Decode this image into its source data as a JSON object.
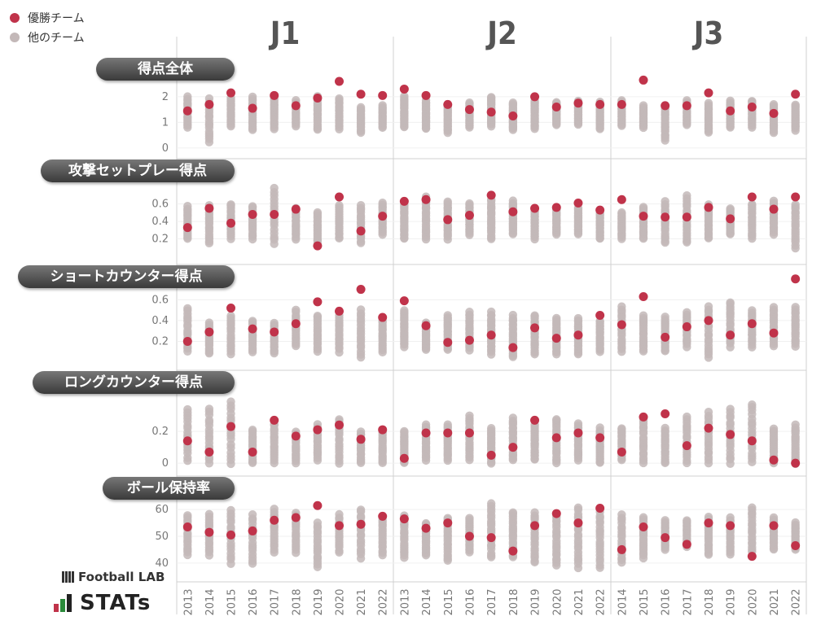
{
  "legend": {
    "winner": {
      "label": "優勝チーム",
      "color": "#c0334a"
    },
    "others": {
      "label": "他のチーム",
      "color": "#c3b8b8"
    }
  },
  "leagues": [
    "J1",
    "J2",
    "J3"
  ],
  "logos": {
    "footballlab": "Football LAB",
    "stats": "STATs"
  },
  "chart_data": {
    "type": "scatter",
    "x_categories": {
      "J1": [
        "2013",
        "2014",
        "2015",
        "2016",
        "2017",
        "2018",
        "2019",
        "2020",
        "2021",
        "2022"
      ],
      "J2": [
        "2013",
        "2014",
        "2015",
        "2016",
        "2017",
        "2018",
        "2019",
        "2020",
        "2021",
        "2022"
      ],
      "J3": [
        "2014",
        "2015",
        "2016",
        "2017",
        "2018",
        "2019",
        "2020",
        "2021",
        "2022"
      ]
    },
    "panels": [
      {
        "label": "得点全体",
        "ylim": [
          -0.1,
          2.6
        ],
        "ticks": [
          0,
          1,
          2
        ],
        "winner": {
          "J1": [
            1.45,
            1.7,
            2.15,
            1.55,
            2.05,
            1.65,
            1.95,
            2.6,
            2.1,
            2.05
          ],
          "J2": [
            2.3,
            2.05,
            1.7,
            1.5,
            1.4,
            1.25,
            2.0,
            1.6,
            1.75,
            1.7
          ],
          "J3": [
            1.7,
            2.65,
            1.65,
            1.65,
            2.15,
            1.45,
            1.6,
            1.35,
            2.1
          ]
        },
        "others_range": {
          "J1": [
            [
              0.8,
              2.0
            ],
            [
              0.25,
              1.9
            ],
            [
              0.85,
              1.95
            ],
            [
              0.7,
              2.0
            ],
            [
              0.75,
              1.95
            ],
            [
              0.85,
              1.85
            ],
            [
              0.7,
              2.0
            ],
            [
              0.75,
              1.95
            ],
            [
              0.6,
              1.6
            ],
            [
              0.8,
              1.65
            ]
          ],
          "J2": [
            [
              0.8,
              2.0
            ],
            [
              0.75,
              1.85
            ],
            [
              0.6,
              1.65
            ],
            [
              0.8,
              1.75
            ],
            [
              0.85,
              2.0
            ],
            [
              0.7,
              1.75
            ],
            [
              0.75,
              1.85
            ],
            [
              0.9,
              1.8
            ],
            [
              0.9,
              1.85
            ],
            [
              0.75,
              1.8
            ]
          ],
          "J3": [
            [
              0.85,
              1.85
            ],
            [
              0.8,
              1.65
            ],
            [
              0.3,
              1.65
            ],
            [
              0.9,
              1.85
            ],
            [
              0.6,
              1.75
            ],
            [
              0.8,
              1.85
            ],
            [
              0.8,
              1.85
            ],
            [
              0.6,
              1.7
            ],
            [
              0.7,
              1.7
            ]
          ]
        }
      },
      {
        "label": "攻撃セットプレー得点",
        "ylim": [
          0.0,
          0.82
        ],
        "ticks": [
          0.2,
          0.4,
          0.6
        ],
        "winner": {
          "J1": [
            0.33,
            0.55,
            0.38,
            0.48,
            0.48,
            0.54,
            0.12,
            0.68,
            0.29,
            0.46
          ],
          "J2": [
            0.63,
            0.65,
            0.42,
            0.47,
            0.7,
            0.51,
            0.55,
            0.56,
            0.61,
            0.53
          ],
          "J3": [
            0.65,
            0.46,
            0.45,
            0.45,
            0.56,
            0.43,
            0.68,
            0.54,
            0.68
          ]
        },
        "others_range": {
          "J1": [
            [
              0.2,
              0.57
            ],
            [
              0.15,
              0.58
            ],
            [
              0.2,
              0.6
            ],
            [
              0.2,
              0.58
            ],
            [
              0.15,
              0.78
            ],
            [
              0.2,
              0.55
            ],
            [
              0.15,
              0.5
            ],
            [
              0.2,
              0.58
            ],
            [
              0.15,
              0.58
            ],
            [
              0.25,
              0.62
            ]
          ],
          "J2": [
            [
              0.2,
              0.6
            ],
            [
              0.2,
              0.68
            ],
            [
              0.2,
              0.63
            ],
            [
              0.25,
              0.6
            ],
            [
              0.2,
              0.65
            ],
            [
              0.25,
              0.63
            ],
            [
              0.2,
              0.55
            ],
            [
              0.25,
              0.55
            ],
            [
              0.25,
              0.55
            ],
            [
              0.2,
              0.53
            ]
          ],
          "J3": [
            [
              0.2,
              0.5
            ],
            [
              0.2,
              0.57
            ],
            [
              0.15,
              0.63
            ],
            [
              0.15,
              0.69
            ],
            [
              0.2,
              0.6
            ],
            [
              0.25,
              0.55
            ],
            [
              0.2,
              0.6
            ],
            [
              0.25,
              0.64
            ],
            [
              0.1,
              0.6
            ]
          ]
        }
      },
      {
        "label": "ショートカウンター得点",
        "ylim": [
          0.0,
          0.72
        ],
        "ticks": [
          0.2,
          0.4,
          0.6
        ],
        "winner": {
          "J1": [
            0.2,
            0.29,
            0.52,
            0.32,
            0.29,
            0.37,
            0.58,
            0.49,
            0.7,
            0.43
          ],
          "J2": [
            0.59,
            0.35,
            0.19,
            0.21,
            0.26,
            0.14,
            0.33,
            0.23,
            0.26,
            0.45
          ],
          "J3": [
            0.36,
            0.63,
            0.24,
            0.34,
            0.4,
            0.26,
            0.37,
            0.28,
            0.8
          ]
        },
        "others_range": {
          "J1": [
            [
              0.1,
              0.52
            ],
            [
              0.08,
              0.38
            ],
            [
              0.08,
              0.45
            ],
            [
              0.1,
              0.4
            ],
            [
              0.08,
              0.38
            ],
            [
              0.15,
              0.5
            ],
            [
              0.1,
              0.45
            ],
            [
              0.1,
              0.45
            ],
            [
              0.05,
              0.5
            ],
            [
              0.1,
              0.42
            ]
          ],
          "J2": [
            [
              0.15,
              0.5
            ],
            [
              0.12,
              0.38
            ],
            [
              0.12,
              0.45
            ],
            [
              0.12,
              0.48
            ],
            [
              0.08,
              0.48
            ],
            [
              0.05,
              0.45
            ],
            [
              0.08,
              0.45
            ],
            [
              0.08,
              0.42
            ],
            [
              0.08,
              0.42
            ],
            [
              0.1,
              0.4
            ]
          ],
          "J3": [
            [
              0.1,
              0.53
            ],
            [
              0.1,
              0.45
            ],
            [
              0.1,
              0.43
            ],
            [
              0.15,
              0.48
            ],
            [
              0.05,
              0.53
            ],
            [
              0.15,
              0.58
            ],
            [
              0.15,
              0.5
            ],
            [
              0.15,
              0.53
            ],
            [
              0.15,
              0.53
            ]
          ]
        }
      },
      {
        "label": "ロングカウンター得点",
        "ylim": [
          -0.03,
          0.42
        ],
        "ticks": [
          0,
          0.2
        ],
        "winner": {
          "J1": [
            0.14,
            0.07,
            0.23,
            0.07,
            0.27,
            0.17,
            0.21,
            0.24,
            0.15,
            0.21
          ],
          "J2": [
            0.03,
            0.19,
            0.19,
            0.19,
            0.05,
            0.1,
            0.27,
            0.16,
            0.19,
            0.16
          ],
          "J3": [
            0.07,
            0.29,
            0.31,
            0.11,
            0.22,
            0.18,
            0.14,
            0.02,
            0.0
          ]
        },
        "others_range": {
          "J1": [
            [
              0.02,
              0.34
            ],
            [
              0.0,
              0.34
            ],
            [
              0.0,
              0.39
            ],
            [
              0.0,
              0.21
            ],
            [
              0.0,
              0.25
            ],
            [
              0.0,
              0.2
            ],
            [
              0.02,
              0.24
            ],
            [
              0.0,
              0.28
            ],
            [
              0.0,
              0.2
            ],
            [
              0.0,
              0.2
            ]
          ],
          "J2": [
            [
              0.0,
              0.2
            ],
            [
              0.02,
              0.24
            ],
            [
              0.02,
              0.24
            ],
            [
              0.02,
              0.3
            ],
            [
              0.0,
              0.22
            ],
            [
              0.02,
              0.28
            ],
            [
              0.02,
              0.24
            ],
            [
              0.0,
              0.28
            ],
            [
              0.02,
              0.25
            ],
            [
              0.0,
              0.22
            ]
          ],
          "J3": [
            [
              0.02,
              0.22
            ],
            [
              0.0,
              0.28
            ],
            [
              0.0,
              0.22
            ],
            [
              0.0,
              0.29
            ],
            [
              0.0,
              0.32
            ],
            [
              0.0,
              0.34
            ],
            [
              0.0,
              0.37
            ],
            [
              0.0,
              0.22
            ],
            [
              0.0,
              0.24
            ]
          ]
        }
      },
      {
        "label": "ボール保持率",
        "ylim": [
          36,
          64
        ],
        "ticks": [
          40,
          50,
          60
        ],
        "winner": {
          "J1": [
            53.5,
            51.5,
            50.5,
            52,
            56,
            57,
            61.5,
            54,
            54.5,
            57.5
          ],
          "J2": [
            56.5,
            53,
            55,
            50,
            49.5,
            44.5,
            54,
            58.5,
            55,
            60.5
          ],
          "J3": [
            45,
            53.5,
            49.5,
            47,
            55,
            54,
            42.5,
            54,
            46.5
          ]
        },
        "others_range": {
          "J1": [
            [
              43,
              58
            ],
            [
              43,
              58
            ],
            [
              40,
              60
            ],
            [
              40,
              58
            ],
            [
              44,
              60
            ],
            [
              44,
              59
            ],
            [
              38.5,
              55
            ],
            [
              44,
              58
            ],
            [
              42,
              60
            ],
            [
              43,
              57
            ]
          ],
          "J2": [
            [
              42,
              58
            ],
            [
              43,
              55
            ],
            [
              41,
              57
            ],
            [
              44,
              57
            ],
            [
              42,
              62
            ],
            [
              42,
              59
            ],
            [
              40,
              59
            ],
            [
              39,
              58
            ],
            [
              38.5,
              61
            ],
            [
              38.5,
              60
            ]
          ],
          "J3": [
            [
              40,
              58
            ],
            [
              42,
              57
            ],
            [
              45,
              56
            ],
            [
              46,
              56
            ],
            [
              43,
              57
            ],
            [
              43,
              57
            ],
            [
              44,
              61
            ],
            [
              45,
              57
            ],
            [
              45,
              55
            ]
          ]
        }
      }
    ]
  }
}
